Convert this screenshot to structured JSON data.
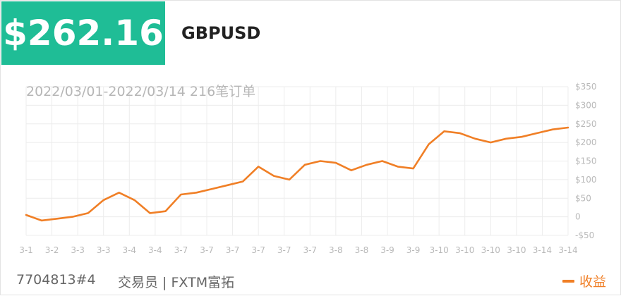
{
  "header": {
    "price": "$262.16",
    "symbol": "GBPUSD",
    "period_text": "2022/03/01-2022/03/14 216笔订单",
    "badge_color": "#1fbd96"
  },
  "footer": {
    "account": "7704813#4",
    "trader_text": "交易员 | FXTM富拓",
    "legend_label": "收益"
  },
  "chart_data": {
    "type": "line",
    "title": "",
    "xlabel": "",
    "ylabel": "",
    "ylim": [
      -50,
      350
    ],
    "y_ticks": [
      -50,
      0,
      50,
      100,
      150,
      200,
      250,
      300,
      350
    ],
    "y_tick_labels": [
      "-$50",
      "0",
      "$50",
      "$100",
      "$150",
      "$200",
      "$250",
      "$300",
      "$350"
    ],
    "x_tick_labels": [
      "3-1",
      "3-2",
      "3-3",
      "3-3",
      "3-4",
      "3-4",
      "3-7",
      "3-7",
      "3-7",
      "3-7",
      "3-7",
      "3-7",
      "3-8",
      "3-8",
      "3-9",
      "3-9",
      "3-10",
      "3-10",
      "3-10",
      "3-10",
      "3-14",
      "3-14"
    ],
    "grid": true,
    "y_axis_side": "right",
    "line_color": "#f07f26",
    "series": [
      {
        "name": "收益",
        "x": [
          0,
          0.6,
          1.2,
          1.8,
          2.4,
          3,
          3.6,
          4.2,
          4.8,
          5.4,
          6,
          6.6,
          7.2,
          7.8,
          8.4,
          9,
          9.6,
          10.2,
          10.8,
          11.4,
          12,
          12.6,
          13.2,
          13.8,
          14.4,
          15,
          15.6,
          16.2,
          16.8,
          17.4,
          18,
          18.6,
          19.2,
          19.8,
          20.4,
          21
        ],
        "values": [
          5,
          -10,
          -5,
          0,
          10,
          45,
          65,
          45,
          10,
          15,
          60,
          65,
          75,
          85,
          95,
          135,
          110,
          100,
          140,
          150,
          145,
          125,
          140,
          150,
          135,
          130,
          195,
          230,
          225,
          210,
          200,
          210,
          215,
          225,
          235,
          240
        ]
      }
    ]
  }
}
